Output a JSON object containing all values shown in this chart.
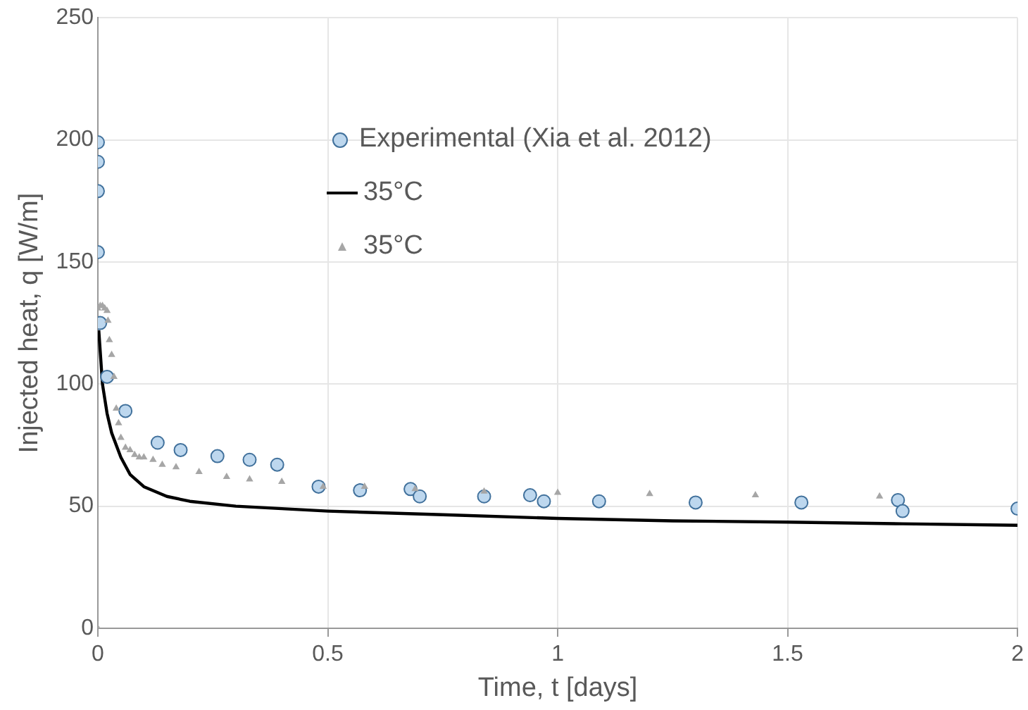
{
  "chart_data": {
    "type": "scatter",
    "xlabel": "Time, t [days]",
    "ylabel": "Injected heat, q [W/m]",
    "xlim": [
      0,
      2
    ],
    "xticks": [
      0,
      0.5,
      1,
      1.5,
      2
    ],
    "ylim": [
      0,
      250
    ],
    "yticks": [
      0,
      50,
      100,
      150,
      200,
      250
    ],
    "grid": true,
    "legend": "top",
    "series": [
      {
        "name": "Experimental (Xia et al. 2012)",
        "marker": "circle",
        "color": "#bdd7ee",
        "x": [
          0,
          0,
          0,
          0,
          0.005,
          0.02,
          0.06,
          0.13,
          0.18,
          0.26,
          0.33,
          0.39,
          0.48,
          0.57,
          0.68,
          0.7,
          0.84,
          0.94,
          0.97,
          1.09,
          1.3,
          1.53,
          1.74,
          1.75,
          2
        ],
        "values": [
          199,
          191,
          179,
          154,
          125,
          103,
          89,
          76,
          73,
          70.5,
          69,
          67,
          58,
          56.5,
          57,
          54,
          54,
          54.5,
          52,
          52,
          51.5,
          51.5,
          52.5,
          48,
          49
        ]
      },
      {
        "name": "35°C",
        "type": "line",
        "marker": "none",
        "line_style": "solid",
        "color": "#000000",
        "x": [
          0.002,
          0.01,
          0.02,
          0.03,
          0.05,
          0.07,
          0.1,
          0.15,
          0.2,
          0.3,
          0.5,
          0.75,
          1,
          1.25,
          1.5,
          1.75,
          2
        ],
        "values": [
          122,
          100,
          88,
          80,
          70,
          63,
          58,
          54,
          52,
          50,
          48,
          46.5,
          45,
          44,
          43.5,
          42.8,
          42.2
        ]
      },
      {
        "name": "35°C",
        "marker": "triangle",
        "color": "#a6a6a6",
        "x": [
          0,
          0,
          0.005,
          0.01,
          0.015,
          0.02,
          0.022,
          0.025,
          0.03,
          0.035,
          0.04,
          0.045,
          0.05,
          0.06,
          0.07,
          0.08,
          0.09,
          0.1,
          0.12,
          0.14,
          0.17,
          0.22,
          0.28,
          0.33,
          0.4,
          0.49,
          0.58,
          0.69,
          0.84,
          1.0,
          1.2,
          1.43,
          1.7
        ],
        "values": [
          0,
          131,
          132,
          132,
          131,
          130,
          126,
          118,
          112,
          103,
          90,
          84,
          78,
          74,
          73,
          71,
          70,
          70,
          69,
          67,
          66,
          64,
          62,
          61,
          60,
          58,
          58,
          57,
          56,
          55.5,
          55,
          54.5,
          54
        ]
      }
    ]
  }
}
